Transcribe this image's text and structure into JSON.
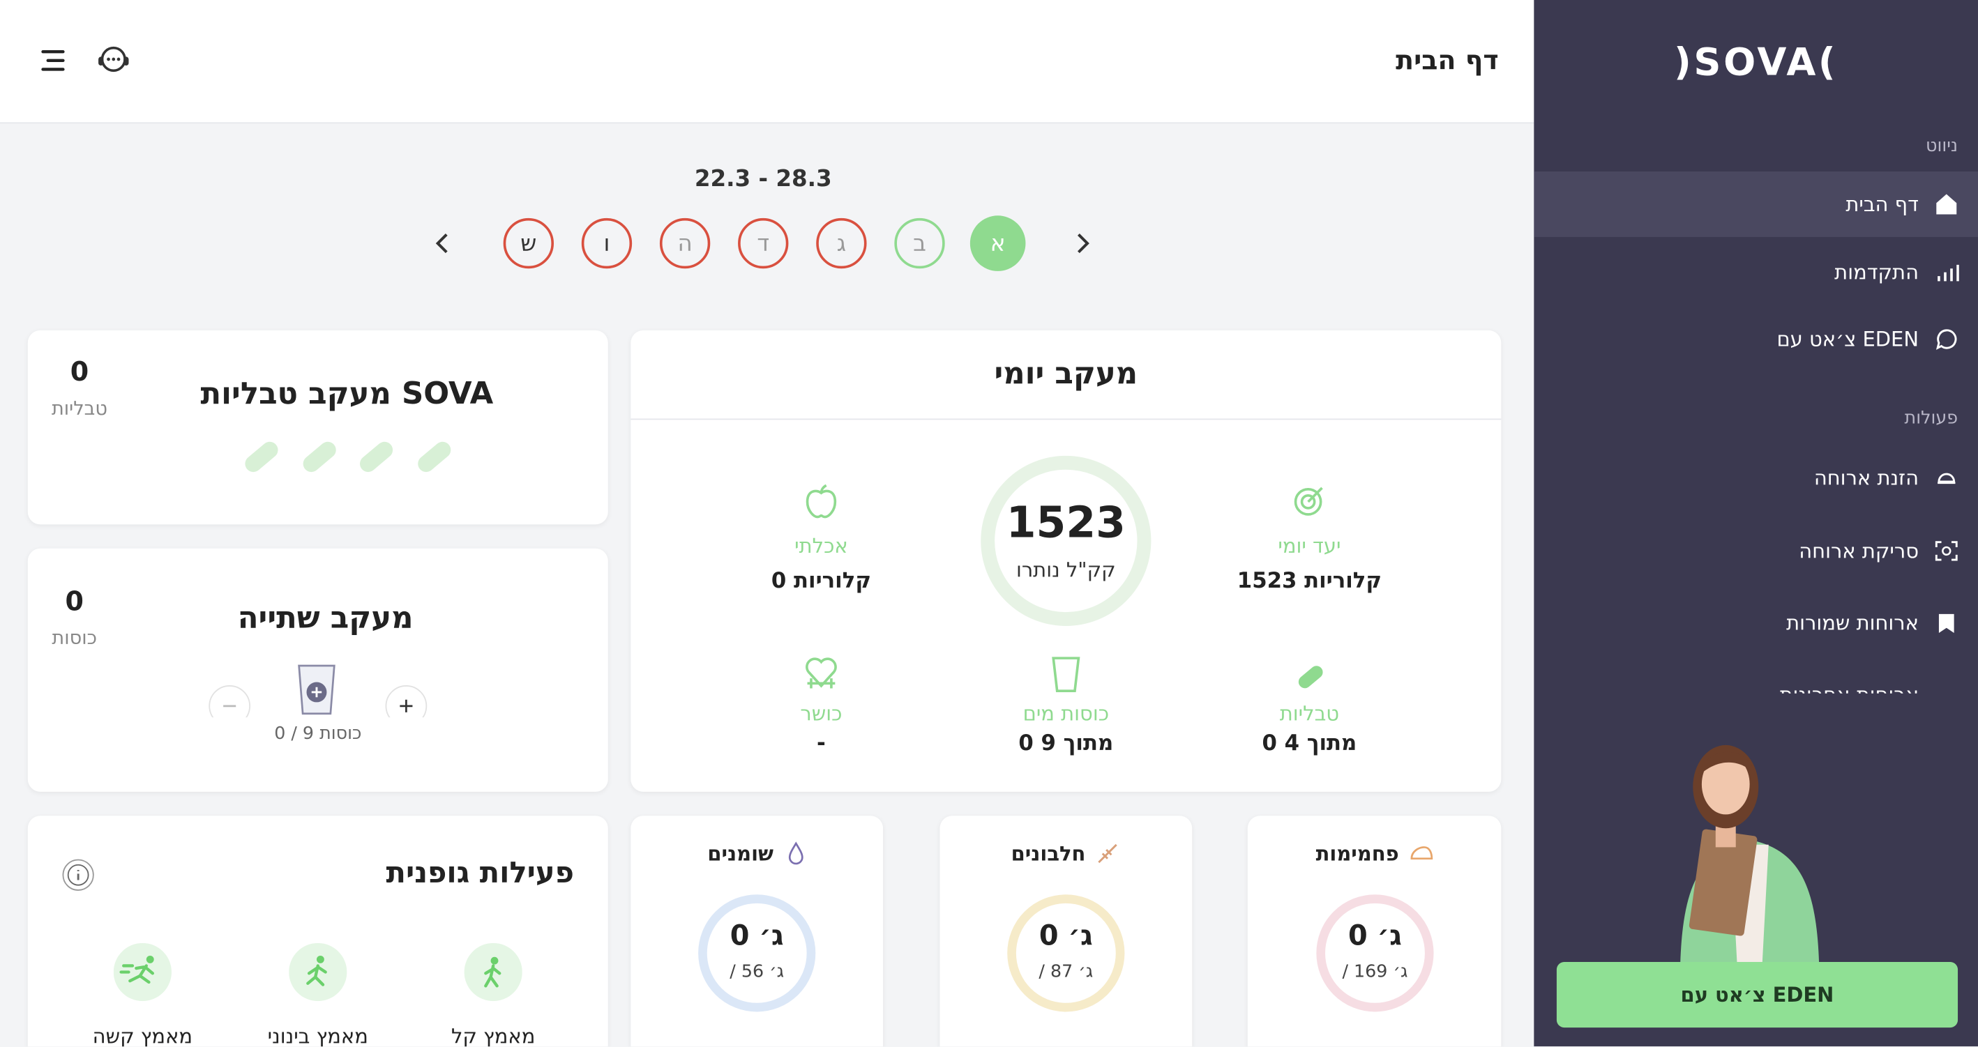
{
  "header": {
    "title": "דף הבית"
  },
  "sidebar": {
    "logo": ")SOVA(",
    "nav_heading": "ניווט",
    "nav": [
      "דף הבית",
      "התקדמות",
      "צ׳אט עם EDEN"
    ],
    "actions_heading": "פעולות",
    "actions": [
      "הזנת ארוחה",
      "סריקת ארוחה",
      "ארוחות שמורות",
      "ארוחות אחרונות"
    ],
    "chat_button": "צ׳אט עם EDEN"
  },
  "week": {
    "range": "22.3 - 28.3",
    "days": [
      "א",
      "ב",
      "ג",
      "ד",
      "ה",
      "ו",
      "ש"
    ]
  },
  "daily": {
    "title": "מעקב יומי",
    "remaining": 1523,
    "remaining_label": "קק\"ל נותרו",
    "goal_label": "יעד יומי",
    "goal_value": "1523 קלוריות",
    "eaten_label": "אכלתי",
    "eaten_value": "0 קלוריות",
    "pills_label": "טבליות",
    "pills_value": "0 מתוך 4",
    "water_label": "כוסות מים",
    "water_value": "0 מתוך 9",
    "fitness_label": "כושר",
    "fitness_value": "-"
  },
  "pills": {
    "title": "מעקב טבליות SOVA",
    "count": 0,
    "unit": "טבליות"
  },
  "drinks": {
    "title": "מעקב שתייה",
    "count": 0,
    "unit": "כוסות",
    "progress": "0 / 9 כוסות"
  },
  "activity": {
    "title": "פעילות גופנית",
    "levels": [
      "מאמץ קל",
      "מאמץ בינוני",
      "מאמץ קשה"
    ]
  },
  "macros": [
    {
      "name": "פחמימות",
      "value": "0 ג׳",
      "target": "/ 169 ג׳"
    },
    {
      "name": "חלבונים",
      "value": "0 ג׳",
      "target": "/ 87 ג׳"
    },
    {
      "name": "שומנים",
      "value": "0 ג׳",
      "target": "/ 56 ג׳"
    }
  ]
}
